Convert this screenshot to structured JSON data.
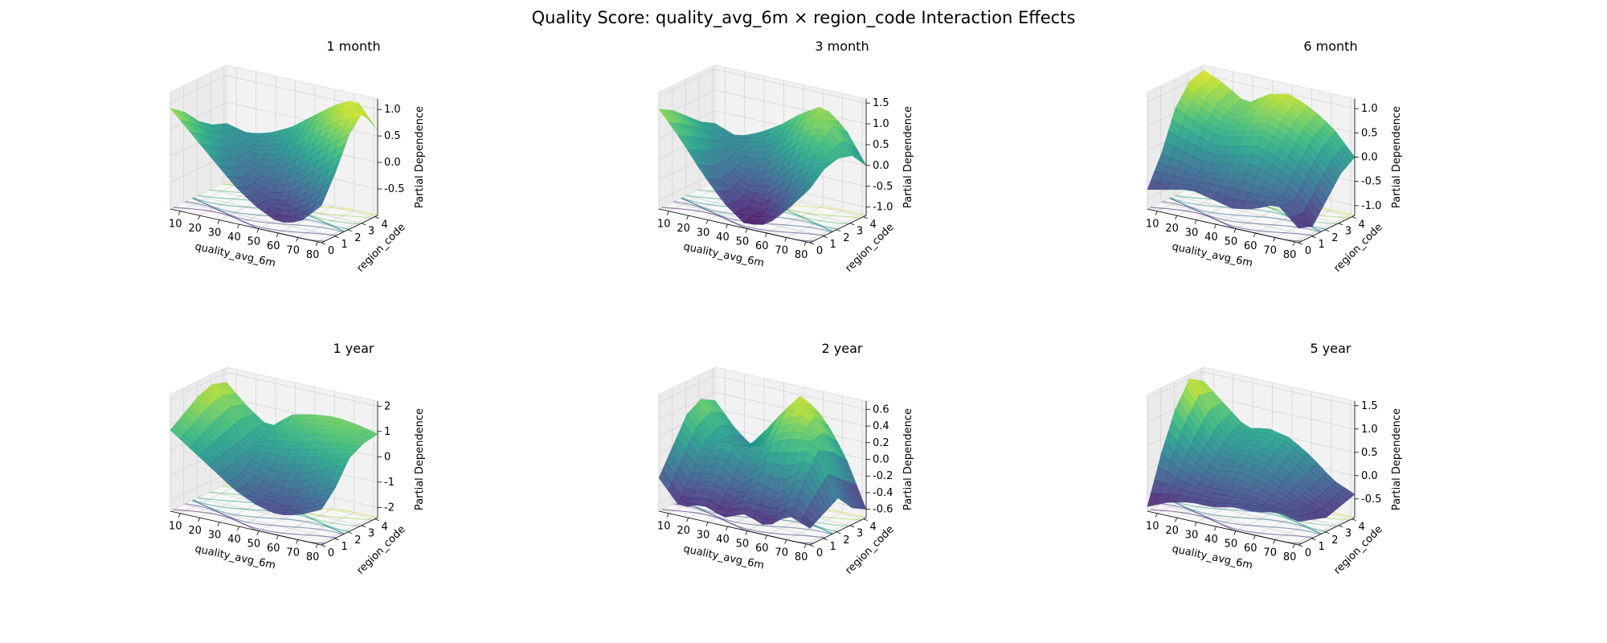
{
  "figure": {
    "title": "Quality Score: quality_avg_6m × region_code Interaction Effects"
  },
  "chart_data": [
    {
      "type": "surface3d",
      "title": "1 month",
      "xlabel": "quality_avg_6m",
      "ylabel": "region_code",
      "zlabel": "Partial Dependence",
      "xlim": [
        5,
        82
      ],
      "ylim": [
        0,
        4.2
      ],
      "zlim": [
        -1.0,
        1.2
      ],
      "xticks": [
        "10",
        "20",
        "30",
        "40",
        "50",
        "60",
        "70",
        "80"
      ],
      "yticks": [
        "0",
        "1",
        "2",
        "3",
        "4"
      ],
      "zticks": [
        "-0.5",
        "0.0",
        "0.5",
        "1.0"
      ],
      "z_grid": [
        [
          0.9,
          0.5,
          0.1,
          -0.3,
          -0.6,
          -0.8,
          -0.7,
          -0.3
        ],
        [
          0.7,
          0.3,
          -0.1,
          -0.4,
          -0.6,
          -0.5,
          -0.2,
          0.2
        ],
        [
          0.4,
          0.1,
          -0.2,
          -0.3,
          -0.2,
          0.1,
          0.5,
          0.8
        ],
        [
          0.2,
          0.0,
          -0.1,
          0.0,
          0.3,
          0.7,
          1.0,
          1.1
        ],
        [
          0.1,
          0.0,
          0.1,
          0.3,
          0.6,
          0.9,
          1.1,
          0.6
        ]
      ],
      "colormap": "viridis"
    },
    {
      "type": "surface3d",
      "title": "3 month",
      "xlabel": "quality_avg_6m",
      "ylabel": "region_code",
      "zlabel": "Partial Dependence",
      "xlim": [
        5,
        82
      ],
      "ylim": [
        0,
        4.2
      ],
      "zlim": [
        -1.2,
        1.6
      ],
      "xticks": [
        "10",
        "20",
        "30",
        "40",
        "50",
        "60",
        "70",
        "80"
      ],
      "yticks": [
        "0",
        "1",
        "2",
        "3",
        "4"
      ],
      "zticks": [
        "-1.0",
        "-0.5",
        "0.0",
        "0.5",
        "1.0",
        "1.5"
      ],
      "z_grid": [
        [
          1.2,
          0.6,
          -0.1,
          -0.7,
          -1.1,
          -1.0,
          -0.5,
          0.1
        ],
        [
          1.0,
          0.4,
          -0.3,
          -0.8,
          -1.0,
          -0.6,
          0.0,
          0.4
        ],
        [
          0.7,
          0.2,
          -0.3,
          -0.5,
          -0.3,
          0.3,
          0.7,
          0.5
        ],
        [
          0.4,
          0.0,
          -0.1,
          0.0,
          0.5,
          1.0,
          1.1,
          0.4
        ],
        [
          0.2,
          0.0,
          0.2,
          0.5,
          0.9,
          1.2,
          0.8,
          0.0
        ]
      ],
      "colormap": "viridis"
    },
    {
      "type": "surface3d",
      "title": "6 month",
      "xlabel": "quality_avg_6m",
      "ylabel": "region_code",
      "zlabel": "Partial Dependence",
      "xlim": [
        5,
        82
      ],
      "ylim": [
        0,
        4.2
      ],
      "zlim": [
        -1.2,
        1.2
      ],
      "xticks": [
        "10",
        "20",
        "30",
        "40",
        "50",
        "60",
        "70",
        "80"
      ],
      "yticks": [
        "0",
        "1",
        "2",
        "3",
        "4"
      ],
      "zticks": [
        "-1.0",
        "-0.5",
        "0.0",
        "0.5",
        "1.0"
      ],
      "z_grid": [
        [
          -0.8,
          -0.7,
          -0.6,
          -0.7,
          -0.8,
          -0.7,
          -0.5,
          -0.9
        ],
        [
          -0.2,
          -0.3,
          -0.4,
          -0.3,
          -0.2,
          -0.3,
          -0.5,
          -1.0
        ],
        [
          0.6,
          0.4,
          0.2,
          0.3,
          0.4,
          0.2,
          -0.1,
          -0.6
        ],
        [
          1.0,
          0.8,
          0.5,
          0.7,
          0.8,
          0.6,
          0.3,
          -0.2
        ],
        [
          1.1,
          0.9,
          0.6,
          0.9,
          1.0,
          0.8,
          0.5,
          0.0
        ]
      ],
      "colormap": "viridis"
    },
    {
      "type": "surface3d",
      "title": "1 year",
      "xlabel": "quality_avg_6m",
      "ylabel": "region_code",
      "zlabel": "Partial Dependence",
      "xlim": [
        5,
        82
      ],
      "ylim": [
        0,
        4.2
      ],
      "zlim": [
        -2.4,
        2.2
      ],
      "xticks": [
        "10",
        "20",
        "30",
        "40",
        "50",
        "60",
        "70",
        "80"
      ],
      "yticks": [
        "0",
        "1",
        "2",
        "3",
        "4"
      ],
      "zticks": [
        "-2",
        "-1",
        "0",
        "1",
        "2"
      ],
      "z_grid": [
        [
          0.8,
          0.2,
          -0.4,
          -1.0,
          -1.4,
          -1.6,
          -1.4,
          -1.0
        ],
        [
          1.2,
          0.5,
          -0.3,
          -0.9,
          -1.2,
          -1.2,
          -0.8,
          -0.4
        ],
        [
          1.6,
          0.8,
          -0.2,
          -0.3,
          -0.4,
          -0.2,
          0.2,
          0.5
        ],
        [
          1.8,
          1.0,
          0.0,
          0.4,
          0.6,
          0.8,
          0.9,
          0.8
        ],
        [
          1.6,
          0.8,
          0.2,
          0.9,
          1.1,
          1.2,
          1.1,
          0.9
        ]
      ],
      "colormap": "viridis"
    },
    {
      "type": "surface3d",
      "title": "2 year",
      "xlabel": "quality_avg_6m",
      "ylabel": "region_code",
      "zlabel": "Partial Dependence",
      "xlim": [
        5,
        82
      ],
      "ylim": [
        0,
        4.2
      ],
      "zlim": [
        -0.7,
        0.7
      ],
      "xticks": [
        "10",
        "20",
        "30",
        "40",
        "50",
        "60",
        "70",
        "80"
      ],
      "yticks": [
        "0",
        "1",
        "2",
        "3",
        "4"
      ],
      "zticks": [
        "-0.6",
        "-0.4",
        "-0.2",
        "0.0",
        "0.2",
        "0.4",
        "0.6"
      ],
      "z_grid": [
        [
          -0.3,
          -0.6,
          -0.5,
          -0.6,
          -0.5,
          -0.6,
          -0.4,
          -0.5
        ],
        [
          0.0,
          -0.3,
          -0.2,
          -0.4,
          -0.2,
          -0.3,
          0.0,
          -0.4
        ],
        [
          0.3,
          0.0,
          0.1,
          -0.1,
          0.2,
          0.3,
          0.3,
          -0.3
        ],
        [
          0.4,
          0.1,
          -0.1,
          0.2,
          0.5,
          0.6,
          0.2,
          -0.5
        ],
        [
          0.3,
          0.0,
          -0.2,
          0.3,
          0.6,
          0.4,
          0.0,
          -0.6
        ]
      ],
      "colormap": "viridis"
    },
    {
      "type": "surface3d",
      "title": "5 year",
      "xlabel": "quality_avg_6m",
      "ylabel": "region_code",
      "zlabel": "Partial Dependence",
      "xlim": [
        5,
        82
      ],
      "ylim": [
        0,
        4.2
      ],
      "zlim": [
        -0.9,
        1.6
      ],
      "xticks": [
        "10",
        "20",
        "30",
        "40",
        "50",
        "60",
        "70",
        "80"
      ],
      "yticks": [
        "0",
        "1",
        "2",
        "3",
        "4"
      ],
      "zticks": [
        "-0.5",
        "0.0",
        "0.5",
        "1.0",
        "1.5"
      ],
      "z_grid": [
        [
          -0.8,
          -0.6,
          -0.5,
          -0.5,
          -0.4,
          -0.4,
          -0.3,
          -0.4
        ],
        [
          0.2,
          -0.1,
          -0.3,
          -0.3,
          -0.3,
          -0.4,
          -0.4,
          -0.5
        ],
        [
          1.0,
          0.4,
          0.0,
          0.1,
          0.0,
          -0.2,
          -0.4,
          -0.6
        ],
        [
          1.5,
          0.8,
          0.3,
          0.4,
          0.3,
          0.0,
          -0.3,
          -0.5
        ],
        [
          1.3,
          0.9,
          0.5,
          0.6,
          0.5,
          0.2,
          -0.2,
          -0.4
        ]
      ],
      "colormap": "viridis"
    }
  ]
}
